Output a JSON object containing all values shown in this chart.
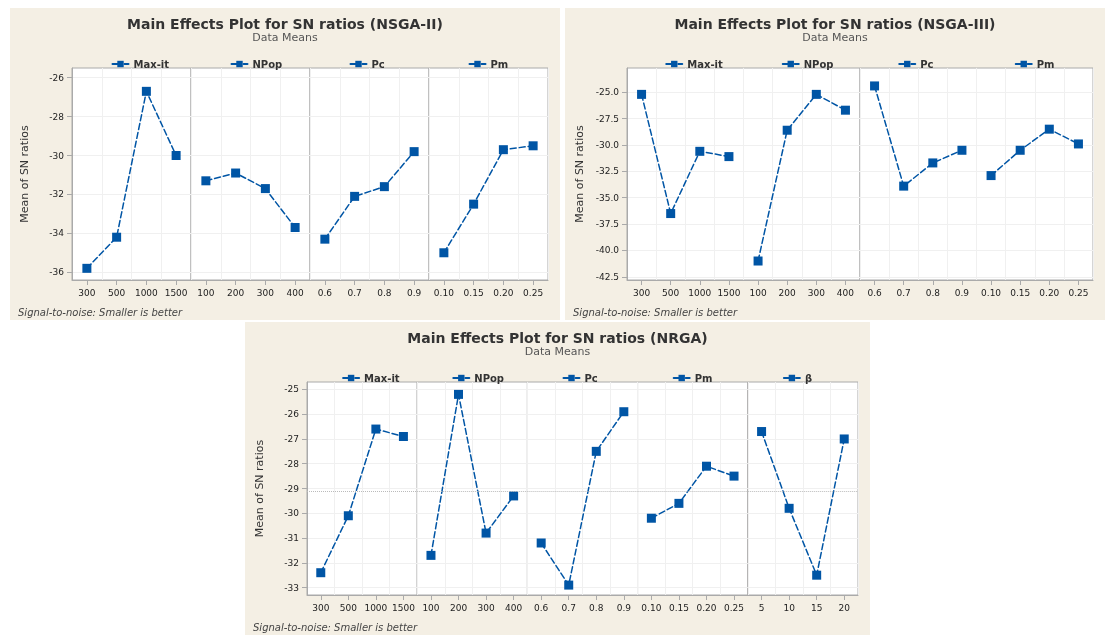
{
  "chart_data": [
    {
      "type": "line",
      "title": "Main Effects Plot for SN ratios (NSGA-II)",
      "subtitle": "Data Means",
      "ylabel": "Mean of SN ratios",
      "annotations": [
        "Signal-to-noise: Smaller is better"
      ],
      "categories": [
        "300",
        "500",
        "1000",
        "1500",
        "100",
        "200",
        "300",
        "400",
        "0.6",
        "0.7",
        "0.8",
        "0.9",
        "0.10",
        "0.15",
        "0.20",
        "0.25"
      ],
      "series": [
        {
          "name": "Max-it",
          "color": "#0055a5",
          "values": [
            -35.8,
            -34.2,
            -26.7,
            -30.0,
            null,
            null,
            null,
            null,
            null,
            null,
            null,
            null,
            null,
            null,
            null,
            null
          ]
        },
        {
          "name": "NPop",
          "color": "#0055a5",
          "values": [
            null,
            null,
            null,
            null,
            -31.3,
            -30.9,
            -31.7,
            -33.7,
            null,
            null,
            null,
            null,
            null,
            null,
            null,
            null
          ]
        },
        {
          "name": "Pc",
          "color": "#0055a5",
          "values": [
            null,
            null,
            null,
            null,
            null,
            null,
            null,
            null,
            -34.3,
            -32.1,
            -31.6,
            -29.8,
            null,
            null,
            null,
            null
          ]
        },
        {
          "name": "Pm",
          "color": "#0055a5",
          "values": [
            null,
            null,
            null,
            null,
            null,
            null,
            null,
            null,
            null,
            null,
            null,
            null,
            -35.0,
            -32.5,
            -29.7,
            -29.5
          ]
        }
      ],
      "ylim": [
        -36.4,
        -25.5
      ],
      "yticks": [
        -36,
        -34,
        -32,
        -30,
        -28,
        -26
      ],
      "grid": true,
      "legend": "top",
      "marker": "square",
      "line_style": "dashed"
    },
    {
      "type": "line",
      "title": "Main Effects Plot for SN ratios (NSGA-III)",
      "subtitle": "Data Means",
      "ylabel": "Mean of SN ratios",
      "annotations": [
        "Signal-to-noise: Smaller is better"
      ],
      "categories": [
        "300",
        "500",
        "1000",
        "1500",
        "100",
        "200",
        "300",
        "400",
        "0.6",
        "0.7",
        "0.8",
        "0.9",
        "0.10",
        "0.15",
        "0.20",
        "0.25"
      ],
      "series": [
        {
          "name": "Max-it",
          "color": "#0055a5",
          "values": [
            -25.2,
            -36.5,
            -30.6,
            -31.1,
            null,
            null,
            null,
            null,
            null,
            null,
            null,
            null,
            null,
            null,
            null,
            null
          ]
        },
        {
          "name": "NPop",
          "color": "#0055a5",
          "values": [
            null,
            null,
            null,
            null,
            -41.0,
            -28.6,
            -25.2,
            -26.7,
            null,
            null,
            null,
            null,
            null,
            null,
            null,
            null
          ]
        },
        {
          "name": "Pc",
          "color": "#0055a5",
          "values": [
            null,
            null,
            null,
            null,
            null,
            null,
            null,
            null,
            -24.4,
            -33.9,
            -31.7,
            -30.5,
            null,
            null,
            null,
            null
          ]
        },
        {
          "name": "Pm",
          "color": "#0055a5",
          "values": [
            null,
            null,
            null,
            null,
            null,
            null,
            null,
            null,
            null,
            null,
            null,
            null,
            -32.9,
            -30.5,
            -28.5,
            -29.9
          ]
        }
      ],
      "ylim": [
        -42.8,
        -22.7
      ],
      "yticks": [
        {
          "value": -42.5,
          "label": "-42.5"
        },
        {
          "value": -40,
          "label": "-40.0"
        },
        {
          "value": -37.5,
          "label": "-37.5"
        },
        {
          "value": -35,
          "label": "-35.0"
        },
        {
          "value": -32.5,
          "label": "-32.5"
        },
        {
          "value": -30,
          "label": "-30.0"
        },
        {
          "value": -27.5,
          "label": "-27.5"
        },
        {
          "value": -25,
          "label": "-25.0"
        }
      ],
      "grid": true,
      "legend": "top",
      "marker": "square",
      "line_style": "dashed"
    },
    {
      "type": "line",
      "title": "Main Effects Plot for SN ratios (NRGA)",
      "subtitle": "Data Means",
      "ylabel": "Mean of SN ratios",
      "annotations": [
        "Signal-to-noise: Smaller is better"
      ],
      "categories": [
        "300",
        "500",
        "1000",
        "1500",
        "100",
        "200",
        "300",
        "400",
        "0.6",
        "0.7",
        "0.8",
        "0.9",
        "0.10",
        "0.15",
        "0.20",
        "0.25",
        "5",
        "10",
        "15",
        "20"
      ],
      "series": [
        {
          "name": "Max-it",
          "color": "#0055a5",
          "values": [
            -32.4,
            -30.1,
            -26.6,
            -26.9,
            null,
            null,
            null,
            null,
            null,
            null,
            null,
            null,
            null,
            null,
            null,
            null,
            null,
            null,
            null,
            null
          ]
        },
        {
          "name": "NPop",
          "color": "#0055a5",
          "values": [
            null,
            null,
            null,
            null,
            -31.7,
            -25.2,
            -30.8,
            -29.3,
            null,
            null,
            null,
            null,
            null,
            null,
            null,
            null,
            null,
            null,
            null,
            null
          ]
        },
        {
          "name": "Pc",
          "color": "#0055a5",
          "values": [
            null,
            null,
            null,
            null,
            null,
            null,
            null,
            null,
            -31.2,
            -32.9,
            -27.5,
            -25.9,
            null,
            null,
            null,
            null,
            null,
            null,
            null,
            null
          ]
        },
        {
          "name": "Pm",
          "color": "#0055a5",
          "values": [
            null,
            null,
            null,
            null,
            null,
            null,
            null,
            null,
            null,
            null,
            null,
            null,
            -30.2,
            -29.6,
            -28.1,
            -28.5,
            null,
            null,
            null,
            null
          ]
        },
        {
          "name": "β",
          "color": "#0055a5",
          "values": [
            null,
            null,
            null,
            null,
            null,
            null,
            null,
            null,
            null,
            null,
            null,
            null,
            null,
            null,
            null,
            null,
            -26.7,
            -29.8,
            -32.5,
            -27.0
          ]
        }
      ],
      "ylim": [
        -33.3,
        -24.7
      ],
      "yticks": [
        -33,
        -32,
        -31,
        -30,
        -29,
        -28,
        -27,
        -26,
        -25
      ],
      "grid": true,
      "legend": "top",
      "marker": "square",
      "line_style": "dashed",
      "ref_lines": [
        {
          "axis": "y",
          "value": -29.1,
          "label": null,
          "color": "#bbbbbb",
          "line_style": "dotted"
        }
      ]
    }
  ]
}
